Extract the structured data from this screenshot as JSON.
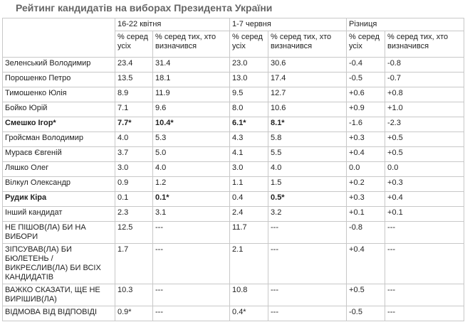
{
  "header": {
    "title": "Рейтинг кандидатів на виборах Президента України"
  },
  "table": {
    "periods": [
      "16-22 квітня",
      "1-7 червня",
      "Різниця"
    ],
    "subheaders": [
      "% серед усіх",
      "% серед тих, хто визначився",
      "% серед усіх",
      "% серед тих, хто визначився",
      "% серед усіх",
      "% серед тих, хто визначився"
    ],
    "rows": [
      {
        "cells": [
          "Зеленський Володимир",
          "23.4",
          "31.4",
          "23.0",
          "30.6",
          "-0.4",
          "-0.8"
        ],
        "bold": []
      },
      {
        "cells": [
          "Порошенко Петро",
          "13.5",
          "18.1",
          "13.0",
          "17.4",
          "-0.5",
          "-0.7"
        ],
        "bold": []
      },
      {
        "cells": [
          "Тимошенко Юлія",
          "8.9",
          "11.9",
          "9.5",
          "12.7",
          "+0.6",
          "+0.8"
        ],
        "bold": []
      },
      {
        "cells": [
          "Бойко Юрій",
          "7.1",
          "9.6",
          "8.0",
          "10.6",
          "+0.9",
          "+1.0"
        ],
        "bold": []
      },
      {
        "cells": [
          "Смешко Ігор*",
          "7.7*",
          "10.4*",
          "6.1*",
          "8.1*",
          "-1.6",
          "-2.3"
        ],
        "bold": [
          0,
          1,
          2,
          3,
          4
        ]
      },
      {
        "cells": [
          "Гройсман Володимир",
          "4.0",
          "5.3",
          "4.3",
          "5.8",
          "+0.3",
          "+0.5"
        ],
        "bold": []
      },
      {
        "cells": [
          "Мураєв Євгеній",
          "3.7",
          "5.0",
          "4.1",
          "5.5",
          "+0.4",
          "+0.5"
        ],
        "bold": []
      },
      {
        "cells": [
          "Ляшко Олег",
          "3.0",
          "4.0",
          "3.0",
          "4.0",
          "0.0",
          "0.0"
        ],
        "bold": []
      },
      {
        "cells": [
          "Вілкул Олександр",
          "0.9",
          "1.2",
          "1.1",
          "1.5",
          "+0.2",
          "+0.3"
        ],
        "bold": []
      },
      {
        "cells": [
          "Рудик Кіра",
          "0.1",
          "0.1*",
          "0.4",
          "0.5*",
          "+0.3",
          "+0.4"
        ],
        "bold": [
          0,
          2,
          4
        ]
      },
      {
        "cells": [
          "Інший кандидат",
          "2.3",
          "3.1",
          "2.4",
          "3.2",
          "+0.1",
          "+0.1"
        ],
        "bold": []
      },
      {
        "cells": [
          "НЕ ПІШОВ(ЛА) БИ НА ВИБОРИ",
          "12.5",
          "---",
          "11.7",
          "---",
          "-0.8",
          "---"
        ],
        "bold": []
      },
      {
        "cells": [
          "ЗІПСУВАВ(ЛА) БИ БЮЛЕТЕНЬ / ВИКРЕСЛИВ(ЛА) БИ ВСІХ КАНДИДАТІВ",
          "1.7",
          "---",
          "2.1",
          "---",
          "+0.4",
          "---"
        ],
        "bold": []
      },
      {
        "cells": [
          "ВАЖКО СКАЗАТИ, ЩЕ НЕ ВИРІШИВ(ЛА)",
          "10.3",
          "---",
          "10.8",
          "---",
          "+0.5",
          "---"
        ],
        "bold": []
      },
      {
        "cells": [
          "ВІДМОВА ВІД ВІДПОВІДІ",
          "0.9*",
          "---",
          "0.4*",
          "---",
          "-0.5",
          "---"
        ],
        "bold": []
      }
    ]
  }
}
